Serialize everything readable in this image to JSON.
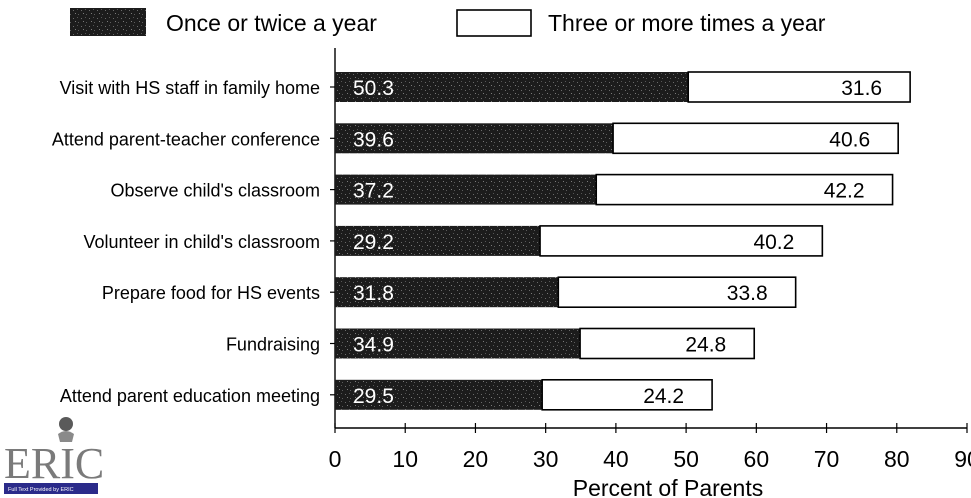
{
  "chart_data": {
    "type": "bar",
    "orientation": "horizontal",
    "stacked": true,
    "categories": [
      "Visit with HS staff in family home",
      "Attend parent-teacher conference",
      "Observe child's classroom",
      "Volunteer in child's classroom",
      "Prepare food for HS events",
      "Fundraising",
      "Attend parent education meeting"
    ],
    "series": [
      {
        "name": "Once or twice a year",
        "color": "#1c1c1c",
        "values": [
          50.3,
          39.6,
          37.2,
          29.2,
          31.8,
          34.9,
          29.5
        ],
        "labels": [
          "50.3",
          "39.6",
          "37.2",
          "29.2",
          "31.8",
          "34.9",
          "29.5"
        ]
      },
      {
        "name": "Three or more times a year",
        "color": "#ffffff",
        "values": [
          31.6,
          40.6,
          42.2,
          40.2,
          33.8,
          24.8,
          24.2
        ],
        "labels": [
          "31.6",
          "40.6",
          "42.2",
          "40.2",
          "33.8",
          "24.8",
          "24.2"
        ]
      }
    ],
    "xlabel": "Percent of Parents",
    "ylabel": "",
    "xlim": [
      0,
      90
    ],
    "xticks": [
      0,
      10,
      20,
      30,
      40,
      50,
      60,
      70,
      80,
      90
    ],
    "xtick_labels": [
      "0",
      "10",
      "20",
      "30",
      "40",
      "50",
      "60",
      "70",
      "80",
      "90"
    ],
    "legend_position": "top",
    "grid": false
  },
  "logo": {
    "text": "ERIC",
    "subtext": "Full Text Provided by ERIC"
  }
}
